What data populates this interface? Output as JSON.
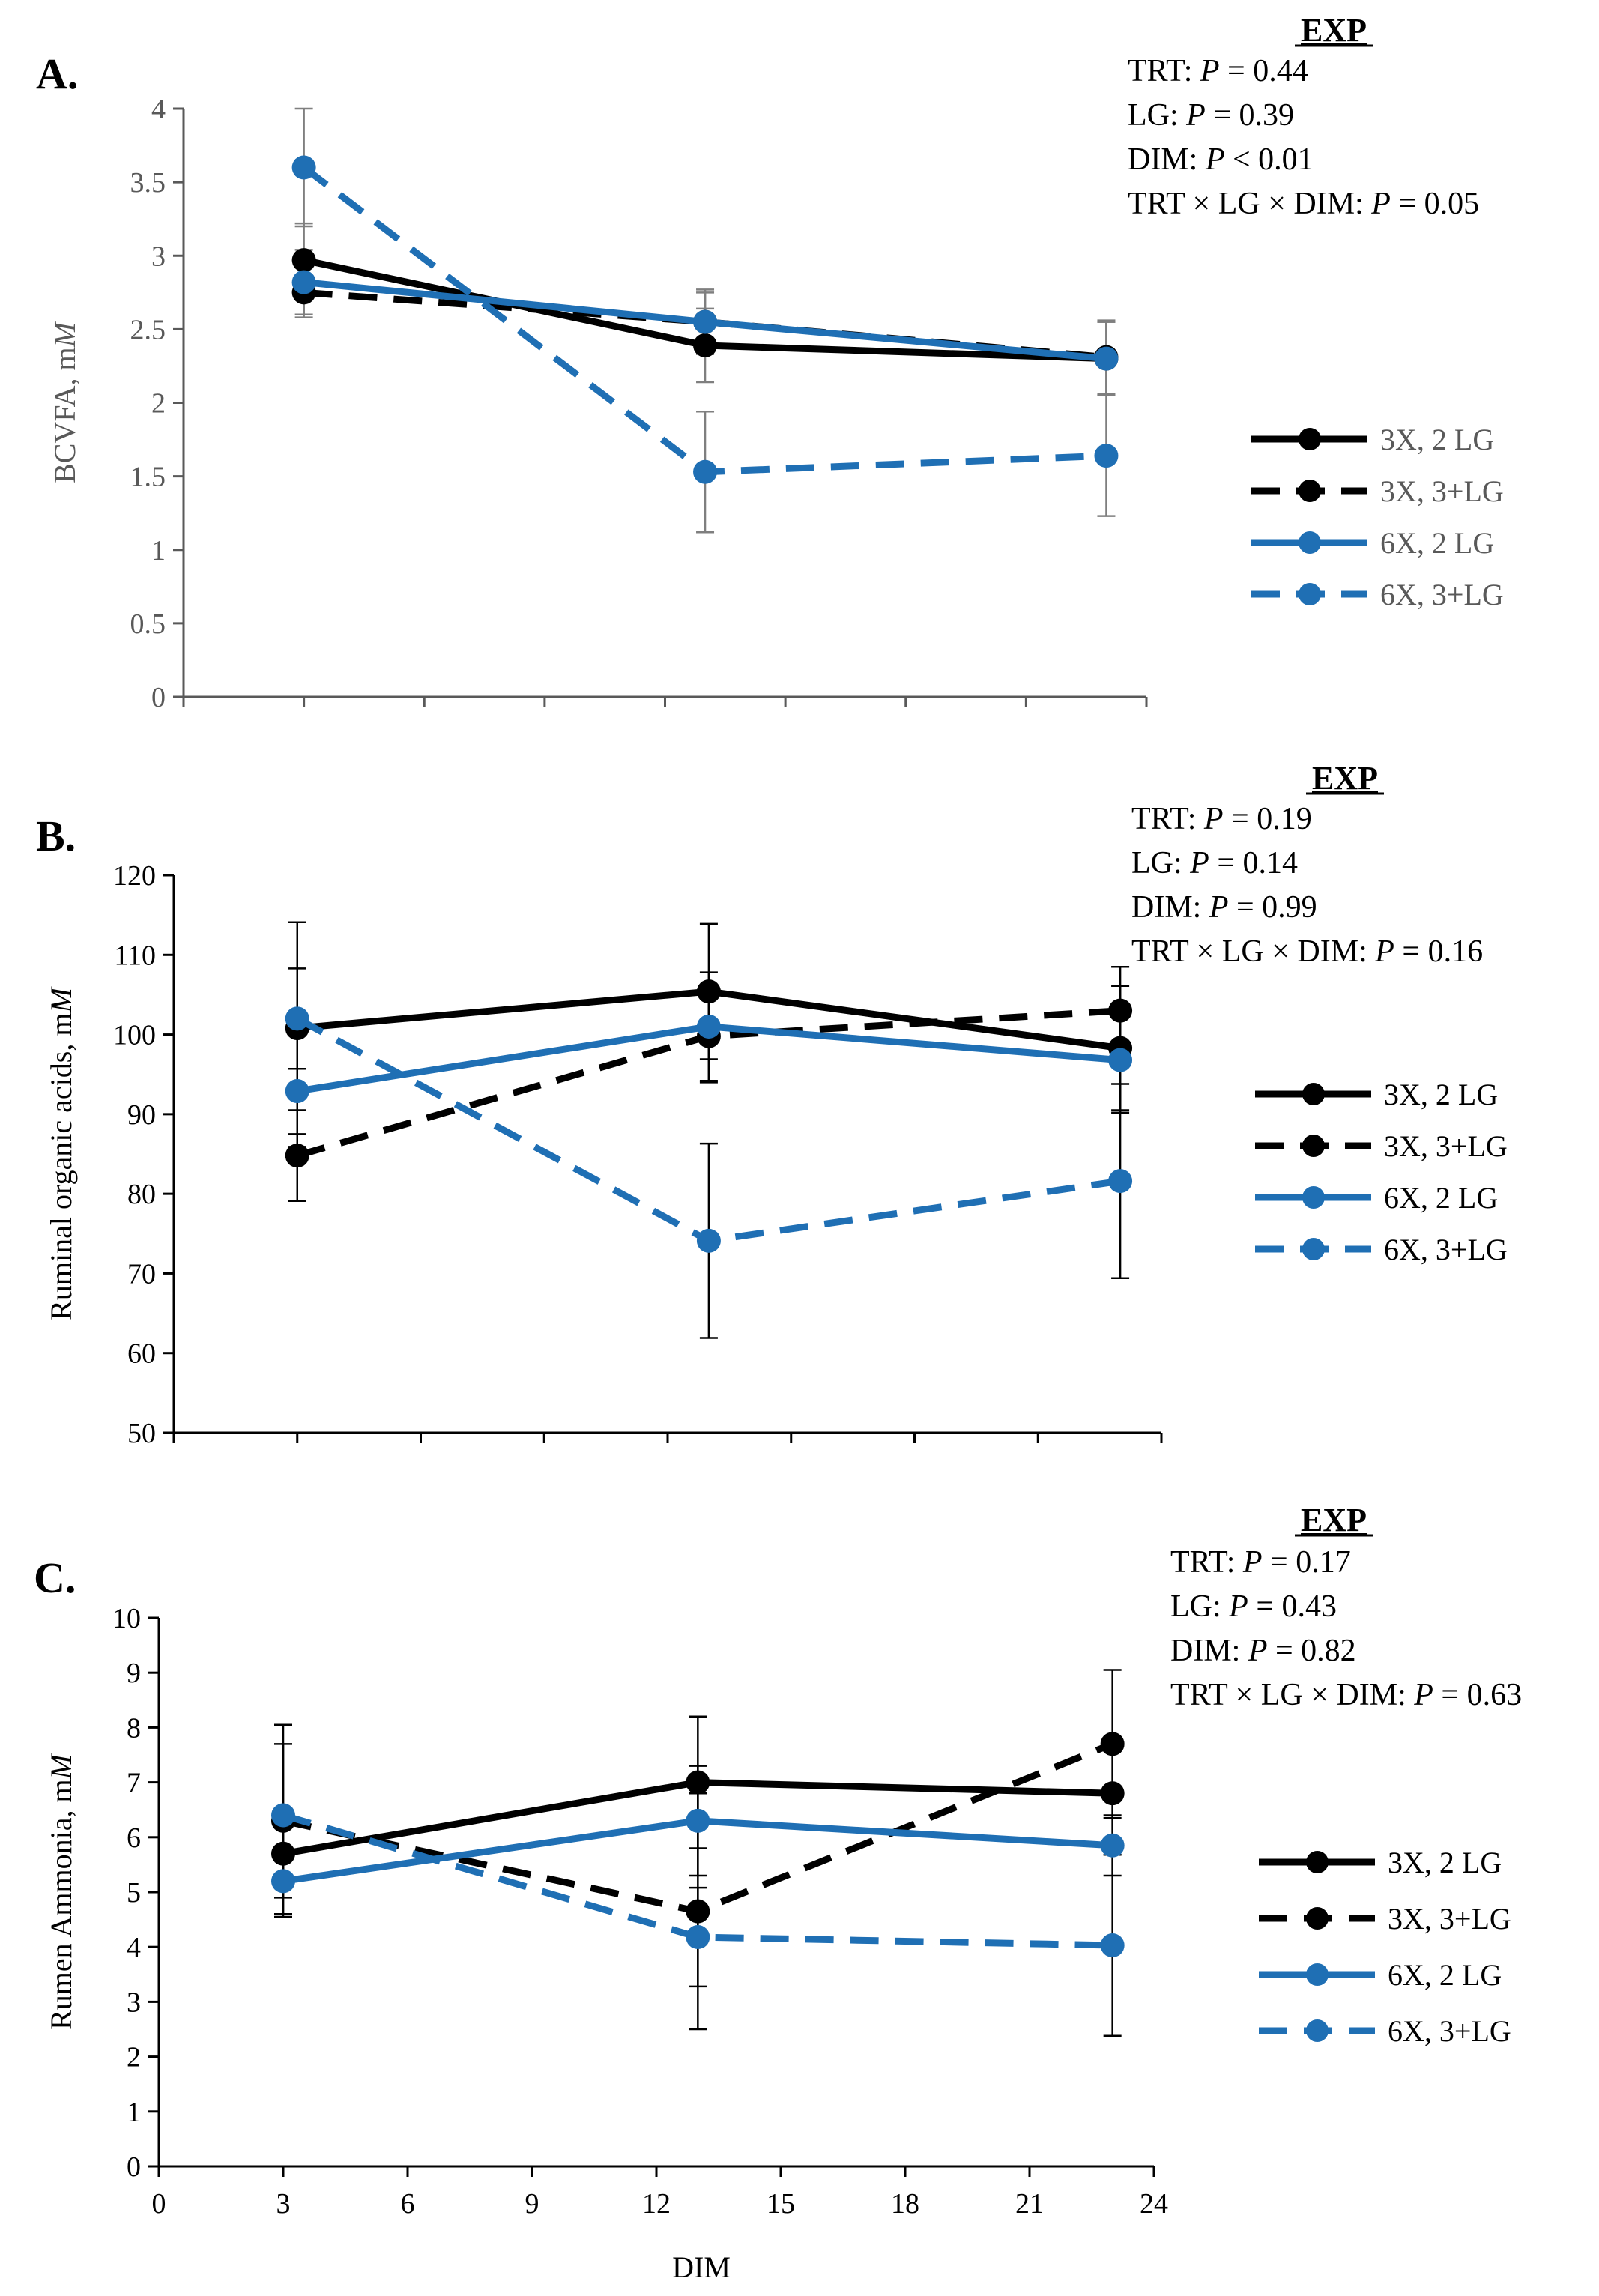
{
  "colors": {
    "black": "#000000",
    "blue": "#1f6fb4",
    "axis": "#000000",
    "gray_axis": "#595959",
    "errbar_gray": "#7f7f7f"
  },
  "chart_data": [
    {
      "type": "line",
      "panel_label": "A.",
      "title": "",
      "xlabel": "",
      "ylabel": "BCVFA, mM",
      "ylabel_prefix": "BCVFA, m",
      "ylabel_italic": "M",
      "ylim": [
        0,
        4
      ],
      "xlim": [
        0,
        24
      ],
      "yticks": [
        "0",
        "0.5",
        "1",
        "1.5",
        "2",
        "2.5",
        "3",
        "3.5",
        "4"
      ],
      "x": [
        3,
        13,
        23
      ],
      "stats": {
        "heading": "EXP",
        "lines": [
          {
            "pre": "TRT: ",
            "p": "P",
            "post": " = 0.44"
          },
          {
            "pre": "LG: ",
            "p": "P",
            "post": " = 0.39"
          },
          {
            "pre": "DIM: ",
            "p": "P",
            "post": " < 0.01"
          },
          {
            "pre": "TRT × LG × DIM: ",
            "p": "P",
            "post": " = 0.05"
          }
        ]
      },
      "series": [
        {
          "name": "3X, 2 LG",
          "color": "black",
          "dash": false,
          "x": [
            3.0,
            13.0,
            23.0
          ],
          "values": [
            2.97,
            2.39,
            2.3
          ],
          "err": [
            0.25,
            0.25,
            0.25
          ]
        },
        {
          "name": "3X, 3+LG",
          "color": "black",
          "dash": true,
          "x": [
            3.0,
            13.0,
            23.0
          ],
          "values": [
            2.75,
            2.55,
            2.31
          ],
          "err": [
            0.17,
            0.2,
            0.25
          ]
        },
        {
          "name": "6X, 2 LG",
          "color": "blue",
          "dash": false,
          "x": [
            3.0,
            13.0,
            23.0
          ],
          "values": [
            2.82,
            2.55,
            2.3
          ],
          "err": [
            0.22,
            0.22,
            0.25
          ]
        },
        {
          "name": "6X, 3+LG",
          "color": "blue",
          "dash": true,
          "x": [
            3.0,
            13.0,
            23.0
          ],
          "values": [
            3.6,
            1.53,
            1.64
          ],
          "err": [
            0.4,
            0.41,
            0.41
          ]
        }
      ]
    },
    {
      "type": "line",
      "panel_label": "B.",
      "title": "",
      "xlabel": "",
      "ylabel": "Ruminal organic acids, mM",
      "ylabel_prefix": "Ruminal organic acids, m",
      "ylabel_italic": "M",
      "ylim": [
        50,
        120
      ],
      "xlim": [
        0,
        24
      ],
      "yticks": [
        "50",
        "60",
        "70",
        "80",
        "90",
        "100",
        "110",
        "120"
      ],
      "x": [
        3,
        13,
        23
      ],
      "stats": {
        "heading": "EXP",
        "lines": [
          {
            "pre": "TRT: ",
            "p": "P",
            "post": " = 0.19"
          },
          {
            "pre": "LG: ",
            "p": "P",
            "post": " = 0.14"
          },
          {
            "pre": "DIM: ",
            "p": "P",
            "post": " = 0.99"
          },
          {
            "pre": "TRT × LG × DIM: ",
            "p": "P",
            "post": " = 0.16"
          }
        ]
      },
      "series": [
        {
          "name": "3X, 2 LG",
          "color": "black",
          "dash": false,
          "x": [
            3.0,
            13.0,
            23.0
          ],
          "values": [
            100.8,
            105.4,
            98.3
          ],
          "err": [
            13.3,
            8.5,
            7.8
          ]
        },
        {
          "name": "3X, 3+LG",
          "color": "black",
          "dash": true,
          "x": [
            3.0,
            13.0,
            23.0
          ],
          "values": [
            84.8,
            99.8,
            103.0
          ],
          "err": [
            5.7,
            5.8,
            5.5
          ]
        },
        {
          "name": "6X, 2 LG",
          "color": "blue",
          "dash": false,
          "x": [
            3.0,
            13.0,
            23.0
          ],
          "values": [
            92.9,
            101.0,
            96.8
          ],
          "err": [
            7.0,
            6.8,
            6.6
          ]
        },
        {
          "name": "6X, 3+LG",
          "color": "blue",
          "dash": true,
          "x": [
            3.0,
            13.0,
            23.0
          ],
          "values": [
            102.0,
            74.1,
            81.6
          ],
          "err": [
            6.3,
            12.2,
            12.2
          ]
        }
      ]
    },
    {
      "type": "line",
      "panel_label": "C.",
      "title": "",
      "xlabel": "DIM",
      "ylabel": "Rumen Ammonia, mM",
      "ylabel_prefix": "Rumen Ammonia, m",
      "ylabel_italic": "M",
      "ylim": [
        0,
        10
      ],
      "xlim": [
        0,
        24
      ],
      "yticks": [
        "0",
        "1",
        "2",
        "3",
        "4",
        "5",
        "6",
        "7",
        "8",
        "9",
        "10"
      ],
      "xticks": [
        "0",
        "3",
        "6",
        "9",
        "12",
        "15",
        "18",
        "21",
        "24"
      ],
      "x": [
        3,
        13,
        23
      ],
      "stats": {
        "heading": "EXP",
        "lines": [
          {
            "pre": "TRT: ",
            "p": "P",
            "post": " = 0.17"
          },
          {
            "pre": "LG: ",
            "p": "P",
            "post": " = 0.43"
          },
          {
            "pre": "DIM: ",
            "p": "P",
            "post": " = 0.82"
          },
          {
            "pre": "TRT × LG × DIM: ",
            "p": "P",
            "post": " = 0.63"
          }
        ]
      },
      "series": [
        {
          "name": "3X, 2 LG",
          "color": "black",
          "dash": false,
          "x": [
            3.0,
            13.0,
            23.0
          ],
          "values": [
            5.7,
            7.0,
            6.8
          ],
          "err": [
            0.8,
            1.2,
            1.0
          ]
        },
        {
          "name": "3X, 3+LG",
          "color": "black",
          "dash": true,
          "x": [
            3.0,
            13.0,
            23.0
          ],
          "values": [
            6.3,
            4.65,
            7.7
          ],
          "err": [
            1.75,
            2.15,
            1.35
          ]
        },
        {
          "name": "6X, 2 LG",
          "color": "blue",
          "dash": false,
          "x": [
            3.0,
            13.0,
            23.0
          ],
          "values": [
            5.2,
            6.3,
            5.85
          ],
          "err": [
            0.6,
            1.0,
            0.55
          ]
        },
        {
          "name": "6X, 3+LG",
          "color": "blue",
          "dash": true,
          "x": [
            3.0,
            13.0,
            23.0
          ],
          "values": [
            6.4,
            4.18,
            4.03
          ],
          "err": [
            1.3,
            0.9,
            1.65
          ]
        }
      ]
    }
  ]
}
